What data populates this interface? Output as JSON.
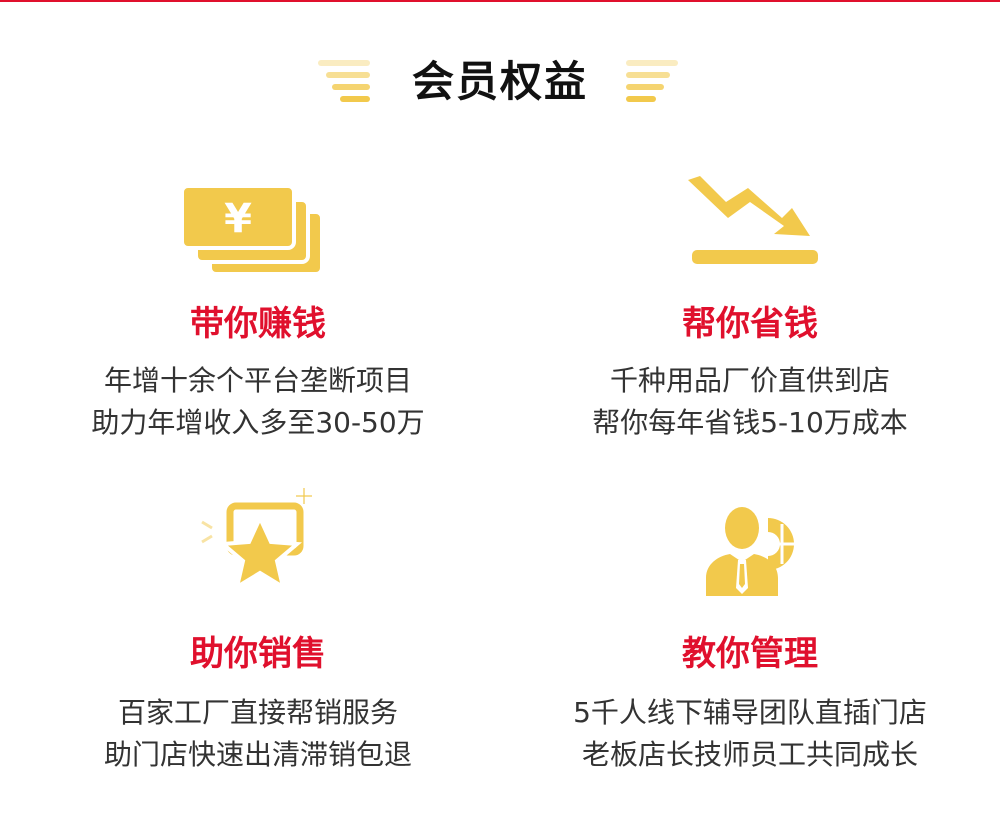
{
  "header": {
    "title": "会员权益"
  },
  "colors": {
    "accent": "#e0102d",
    "icon_gold": "#f2c94c"
  },
  "benefits": [
    {
      "icon": "money-stack-icon",
      "title": "带你赚钱",
      "lines": [
        "年增十余个平台垄断项目",
        "助力年增收入多至30-50万"
      ]
    },
    {
      "icon": "trend-down-icon",
      "title": "帮你省钱",
      "lines": [
        "千种用品厂价直供到店",
        "帮你每年省钱5-10万成本"
      ]
    },
    {
      "icon": "star-badge-icon",
      "title": "助你销售",
      "lines": [
        "百家工厂直接帮销服务",
        "助门店快速出清滞销包退"
      ]
    },
    {
      "icon": "manager-icon",
      "title": "教你管理",
      "lines": [
        "5千人线下辅导团队直插门店",
        "老板店长技师员工共同成长"
      ]
    }
  ]
}
